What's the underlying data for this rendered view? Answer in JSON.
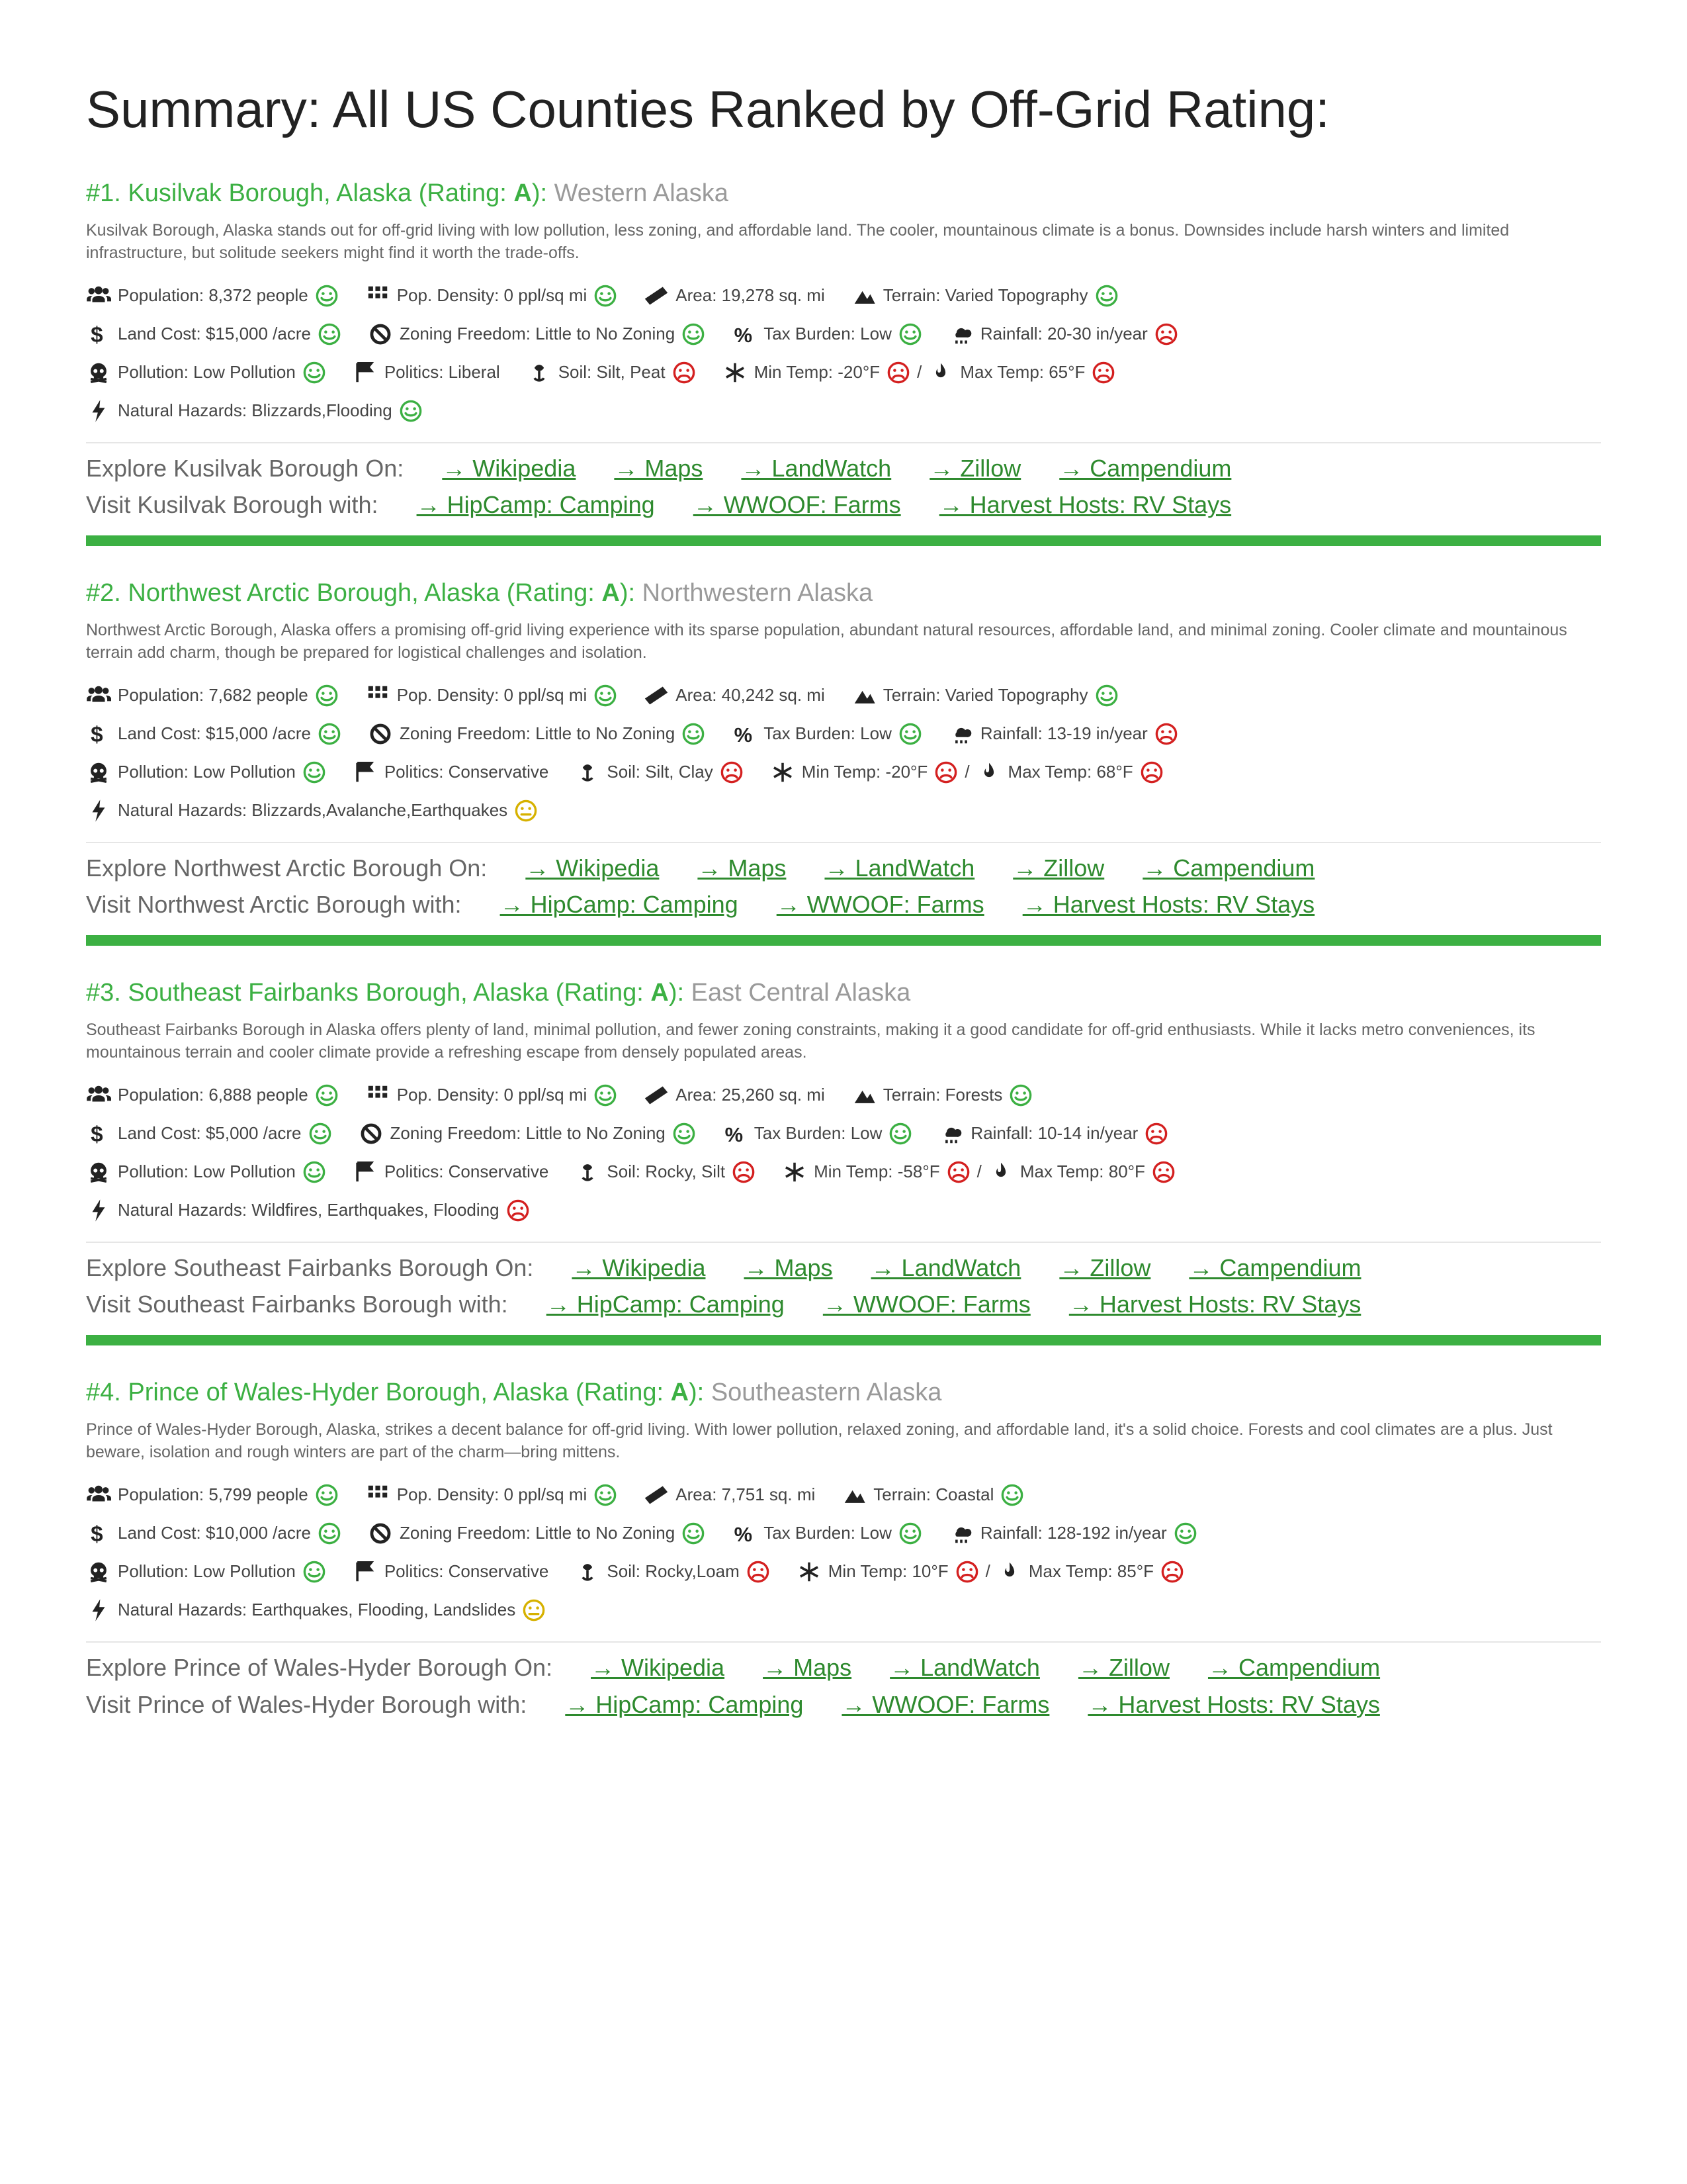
{
  "page_title": "Summary: All US Counties Ranked by Off-Grid Rating:",
  "colors": {
    "accent_green": "#3cb043",
    "link_green": "#2e8a2e",
    "gray_region": "#9a9a9a",
    "text_body": "#666666",
    "icon_black": "#222222",
    "face_good": "#3cb043",
    "face_neutral": "#d6b100",
    "face_bad": "#d42020"
  },
  "link_labels": {
    "wikipedia": "→ Wikipedia",
    "maps": "→ Maps",
    "landwatch": "→ LandWatch",
    "zillow": "→ Zillow",
    "campendium": "→ Campendium",
    "hipcamp": "→ HipCamp: Camping",
    "wwoof": "→ WWOOF: Farms",
    "harvest": "→ Harvest Hosts: RV Stays"
  },
  "stat_labels": {
    "population": "Population:",
    "density": "Pop. Density:",
    "area": "Area:",
    "terrain": "Terrain:",
    "land_cost": "Land Cost:",
    "zoning": "Zoning Freedom:",
    "tax": "Tax Burden:",
    "rain": "Rainfall:",
    "pollution": "Pollution:",
    "politics": "Politics:",
    "soil": "Soil:",
    "min_temp": "Min Temp:",
    "max_temp": "Max Temp:",
    "hazards": "Natural Hazards:"
  },
  "entries": [
    {
      "rank": "#1.",
      "name": "Kusilvak Borough, Alaska",
      "rating": "A",
      "region": "Western Alaska",
      "desc": "Kusilvak Borough, Alaska stands out for off-grid living with low pollution, less zoning, and affordable land. The cooler, mountainous climate is a bonus. Downsides include harsh winters and limited infrastructure, but solitude seekers might find it worth the trade-offs.",
      "stats": {
        "population": {
          "value": "8,372 people",
          "face": "good"
        },
        "density": {
          "value": "0 ppl/sq mi",
          "face": "good"
        },
        "area": {
          "value": "19,278 sq. mi",
          "face": "none"
        },
        "terrain": {
          "value": "Varied Topography",
          "face": "good"
        },
        "land_cost": {
          "value": "$15,000 /acre",
          "face": "good"
        },
        "zoning": {
          "value": "Little to No Zoning",
          "face": "good"
        },
        "tax": {
          "value": "Low",
          "face": "good"
        },
        "rain": {
          "value": "20-30 in/year",
          "face": "bad"
        },
        "pollution": {
          "value": "Low Pollution",
          "face": "good"
        },
        "politics": {
          "value": "Liberal",
          "face": "none"
        },
        "soil": {
          "value": "Silt, Peat",
          "face": "bad"
        },
        "min_temp": {
          "value": "-20°F",
          "face": "bad"
        },
        "max_temp": {
          "value": "65°F",
          "face": "bad"
        },
        "hazards": {
          "value": "Blizzards,Flooding",
          "face": "good"
        }
      },
      "explore_lead": "Explore Kusilvak Borough On:",
      "visit_lead": "Visit Kusilvak Borough with:"
    },
    {
      "rank": "#2.",
      "name": "Northwest Arctic Borough, Alaska",
      "rating": "A",
      "region": "Northwestern Alaska",
      "desc": "Northwest Arctic Borough, Alaska offers a promising off-grid living experience with its sparse population, abundant natural resources, affordable land, and minimal zoning. Cooler climate and mountainous terrain add charm, though be prepared for logistical challenges and isolation.",
      "stats": {
        "population": {
          "value": "7,682 people",
          "face": "good"
        },
        "density": {
          "value": "0 ppl/sq mi",
          "face": "good"
        },
        "area": {
          "value": "40,242 sq. mi",
          "face": "none"
        },
        "terrain": {
          "value": "Varied Topography",
          "face": "good"
        },
        "land_cost": {
          "value": "$15,000 /acre",
          "face": "good"
        },
        "zoning": {
          "value": "Little to No Zoning",
          "face": "good"
        },
        "tax": {
          "value": "Low",
          "face": "good"
        },
        "rain": {
          "value": "13-19 in/year",
          "face": "bad"
        },
        "pollution": {
          "value": "Low Pollution",
          "face": "good"
        },
        "politics": {
          "value": "Conservative",
          "face": "none"
        },
        "soil": {
          "value": "Silt, Clay",
          "face": "bad"
        },
        "min_temp": {
          "value": "-20°F",
          "face": "bad"
        },
        "max_temp": {
          "value": "68°F",
          "face": "bad"
        },
        "hazards": {
          "value": "Blizzards,Avalanche,Earthquakes",
          "face": "neutral"
        }
      },
      "explore_lead": "Explore Northwest Arctic Borough On:",
      "visit_lead": "Visit Northwest Arctic Borough with:"
    },
    {
      "rank": "#3.",
      "name": "Southeast Fairbanks Borough, Alaska",
      "rating": "A",
      "region": "East Central Alaska",
      "desc": "Southeast Fairbanks Borough in Alaska offers plenty of land, minimal pollution, and fewer zoning constraints, making it a good candidate for off-grid enthusiasts. While it lacks metro conveniences, its mountainous terrain and cooler climate provide a refreshing escape from densely populated areas.",
      "stats": {
        "population": {
          "value": "6,888 people",
          "face": "good"
        },
        "density": {
          "value": "0 ppl/sq mi",
          "face": "good"
        },
        "area": {
          "value": "25,260 sq. mi",
          "face": "none"
        },
        "terrain": {
          "value": "Forests",
          "face": "good"
        },
        "land_cost": {
          "value": "$5,000 /acre",
          "face": "good"
        },
        "zoning": {
          "value": "Little to No Zoning",
          "face": "good"
        },
        "tax": {
          "value": "Low",
          "face": "good"
        },
        "rain": {
          "value": "10-14 in/year",
          "face": "bad"
        },
        "pollution": {
          "value": "Low Pollution",
          "face": "good"
        },
        "politics": {
          "value": "Conservative",
          "face": "none"
        },
        "soil": {
          "value": "Rocky, Silt",
          "face": "bad"
        },
        "min_temp": {
          "value": "-58°F",
          "face": "bad"
        },
        "max_temp": {
          "value": "80°F",
          "face": "bad"
        },
        "hazards": {
          "value": "Wildfires, Earthquakes, Flooding",
          "face": "bad"
        }
      },
      "explore_lead": "Explore Southeast Fairbanks Borough On:",
      "visit_lead": "Visit Southeast Fairbanks Borough with:"
    },
    {
      "rank": "#4.",
      "name": "Prince of Wales-Hyder Borough, Alaska",
      "rating": "A",
      "region": "Southeastern Alaska",
      "desc": "Prince of Wales-Hyder Borough, Alaska, strikes a decent balance for off-grid living. With lower pollution, relaxed zoning, and affordable land, it's a solid choice. Forests and cool climates are a plus. Just beware, isolation and rough winters are part of the charm—bring mittens.",
      "stats": {
        "population": {
          "value": "5,799 people",
          "face": "good"
        },
        "density": {
          "value": "0 ppl/sq mi",
          "face": "good"
        },
        "area": {
          "value": "7,751 sq. mi",
          "face": "none"
        },
        "terrain": {
          "value": "Coastal",
          "face": "good"
        },
        "land_cost": {
          "value": "$10,000 /acre",
          "face": "good"
        },
        "zoning": {
          "value": "Little to No Zoning",
          "face": "good"
        },
        "tax": {
          "value": "Low",
          "face": "good"
        },
        "rain": {
          "value": "128-192 in/year",
          "face": "good"
        },
        "pollution": {
          "value": "Low Pollution",
          "face": "good"
        },
        "politics": {
          "value": "Conservative",
          "face": "none"
        },
        "soil": {
          "value": "Rocky,Loam",
          "face": "bad"
        },
        "min_temp": {
          "value": "10°F",
          "face": "bad"
        },
        "max_temp": {
          "value": "85°F",
          "face": "bad"
        },
        "hazards": {
          "value": "Earthquakes, Flooding, Landslides",
          "face": "neutral"
        }
      },
      "explore_lead": "Explore Prince of Wales-Hyder Borough On:",
      "visit_lead": "Visit Prince of Wales-Hyder Borough with:"
    }
  ]
}
